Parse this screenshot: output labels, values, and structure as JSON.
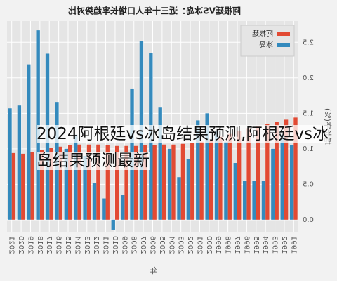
{
  "chart_data": {
    "type": "bar",
    "title": "阿根廷VS冰岛：近三十年人口增长率趋势对比",
    "x_label": "年",
    "y_label": "增长率(%)",
    "categories": [
      "1991",
      "1992",
      "1993",
      "1994",
      "1995",
      "1996",
      "1997",
      "1998",
      "1999",
      "2000",
      "2001",
      "2002",
      "2003",
      "2004",
      "2005",
      "2006",
      "2007",
      "2008",
      "2009",
      "2010",
      "2011",
      "2012",
      "2013",
      "2014",
      "2015",
      "2016",
      "2017",
      "2018",
      "2019",
      "2020",
      "2021"
    ],
    "series": [
      {
        "name": "阿根廷",
        "color": "#e24a33",
        "values": [
          1.44,
          1.41,
          1.38,
          1.35,
          1.32,
          1.29,
          1.25,
          1.21,
          1.17,
          1.13,
          1.1,
          1.08,
          1.07,
          1.06,
          1.06,
          1.05,
          1.05,
          1.04,
          1.04,
          1.04,
          1.05,
          1.06,
          1.06,
          1.06,
          1.05,
          1.03,
          1.01,
          0.98,
          0.95,
          0.93,
          0.94
        ]
      },
      {
        "name": "冰岛",
        "color": "#348abd",
        "values": [
          1.05,
          1.2,
          1.0,
          0.55,
          0.55,
          0.55,
          0.8,
          1.1,
          1.25,
          1.5,
          1.4,
          0.85,
          0.6,
          1.0,
          1.58,
          2.35,
          2.52,
          1.85,
          0.35,
          -0.14,
          0.3,
          0.52,
          0.9,
          1.2,
          1.0,
          1.66,
          2.34,
          2.67,
          2.19,
          1.61,
          1.57
        ]
      }
    ],
    "ylim": [
      -0.17,
      2.8
    ],
    "yticks": [
      {
        "value": 0,
        "label": "0.0"
      },
      0.5,
      {
        "value": 1,
        "label": "1.0"
      },
      1.5,
      {
        "value": 2,
        "label": "2.0"
      },
      2.5
    ],
    "grid": true,
    "legend": "upper left"
  },
  "overlay_text": "2024阿根廷vs冰岛结果预测,阿根廷vs冰岛结果预测最新"
}
